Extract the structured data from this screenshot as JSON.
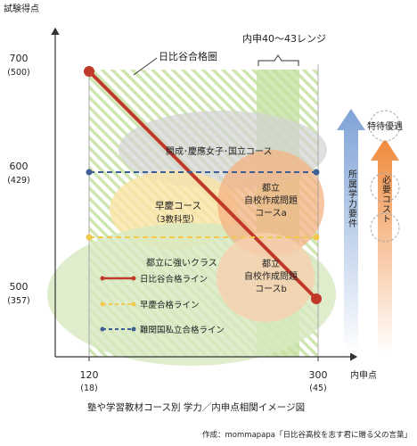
{
  "axes": {
    "y_title": "試験得点",
    "x_title": "内申点",
    "y_ticks": [
      {
        "main": "700",
        "sub": "(500)"
      },
      {
        "main": "600",
        "sub": "(429)"
      },
      {
        "main": "500",
        "sub": "(357)"
      }
    ],
    "x_ticks": [
      {
        "main": "120",
        "sub": "(18)"
      },
      {
        "main": "300",
        "sub": "(45)"
      }
    ]
  },
  "labels": {
    "hibiya_zone": "日比谷合格圏",
    "naishin_range": "内申40～43レンジ",
    "kaisei": "開成･慶應女子･国立コース",
    "waseda_course": "早慶コース",
    "waseda_sub": "（3教科型）",
    "toritsu_a_1": "都立",
    "toritsu_a_2": "自校作成問題",
    "toritsu_a_3": "コースa",
    "toritsu_b_1": "都立",
    "toritsu_b_2": "自校作成問題",
    "toritsu_b_3": "コースb",
    "strong_class": "都立に強いクラス",
    "arrow_blue": "所属学力要件",
    "arrow_orange": "必要コスト",
    "tokutai": "特待優遇"
  },
  "legend": [
    {
      "label": "日比谷合格ライン",
      "color": "#c0392b",
      "style": "solid"
    },
    {
      "label": "早慶合格ライン",
      "color": "#f2c94c",
      "style": "dashed"
    },
    {
      "label": "難関国私立合格ライン",
      "color": "#3e5f95",
      "style": "dashed"
    }
  ],
  "footer": {
    "caption": "塾や学習教材コース別 学力／内申点相関イメージ図",
    "credit": "作成：mommapapa「日比谷高校を志す君に贈る父の言葉」"
  }
}
